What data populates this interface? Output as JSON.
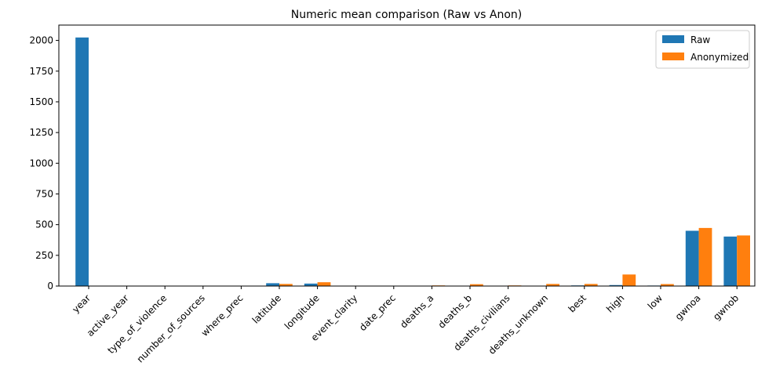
{
  "chart_data": {
    "type": "bar",
    "title": "Numeric mean comparison (Raw vs Anon)",
    "xlabel": "",
    "ylabel": "",
    "ylim": [
      0,
      2125
    ],
    "yticks": [
      0,
      250,
      500,
      750,
      1000,
      1250,
      1500,
      1750,
      2000
    ],
    "grid": false,
    "legend_position": "top-right",
    "categories": [
      "year",
      "active_year",
      "type_of_violence",
      "number_of_sources",
      "where_prec",
      "latitude",
      "longitude",
      "event_clarity",
      "date_prec",
      "deaths_a",
      "deaths_b",
      "deaths_civilians",
      "deaths_unknown",
      "best",
      "high",
      "low",
      "gwnoa",
      "gwnob"
    ],
    "series": [
      {
        "name": "Raw",
        "color": "#1f77b4",
        "values": [
          2024,
          1,
          1.5,
          3,
          2,
          23,
          20,
          1.2,
          1.1,
          2,
          1,
          1,
          1,
          5,
          8,
          4,
          450,
          403
        ]
      },
      {
        "name": "Anonymized",
        "color": "#ff7f0e",
        "values": [
          0,
          0,
          0,
          0,
          0,
          17,
          31,
          0,
          0,
          5,
          15,
          5,
          17,
          17,
          94,
          16,
          473,
          412
        ]
      }
    ]
  }
}
